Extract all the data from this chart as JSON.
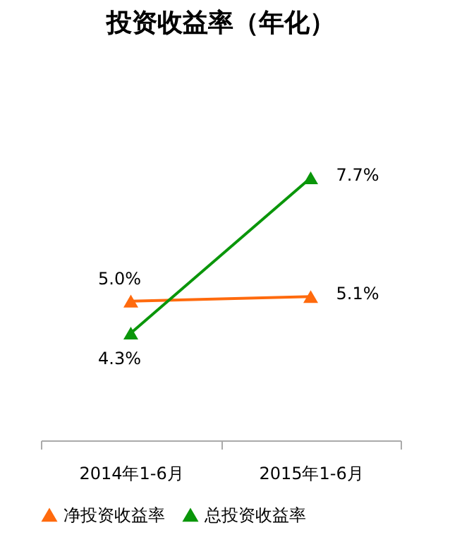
{
  "chart_data": {
    "type": "line",
    "title": "投资收益率（年化）",
    "categories": [
      "2014年1-6月",
      "2015年1-6月"
    ],
    "series": [
      {
        "name": "净投资收益率",
        "color": "#ff6a0d",
        "values": [
          5.0,
          5.1
        ],
        "value_labels": [
          "5.0%",
          "5.1%"
        ]
      },
      {
        "name": "总投资收益率",
        "color": "#0a960a",
        "values": [
          4.3,
          7.7
        ],
        "value_labels": [
          "4.3%",
          "7.7%"
        ]
      }
    ],
    "marker": "triangle",
    "line_style": "solid",
    "grid": false,
    "legend": "bottom",
    "tick_labels": "x"
  }
}
